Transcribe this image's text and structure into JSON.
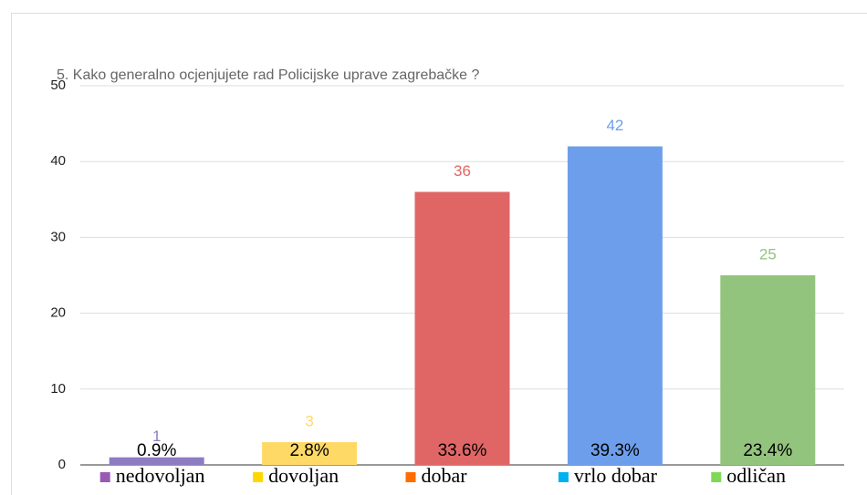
{
  "chart_data": {
    "type": "bar",
    "title": "5. Kako generalno ocjenjujete rad Policijske uprave zagrebačke ?",
    "categories": [
      "nedovoljan",
      "dovoljan",
      "dobar",
      "vrlo dobar",
      "odličan"
    ],
    "values": [
      1,
      3,
      36,
      42,
      25
    ],
    "colors": [
      "#8e7cc3",
      "#ffd966",
      "#e06666",
      "#6d9eeb",
      "#93c47d"
    ],
    "annotations": [
      "0.9%",
      "2.8%",
      "33.6%",
      "39.3%",
      "23.4%"
    ],
    "legend_colors": [
      "#9b59b6",
      "#ffd700",
      "#ff6d01",
      "#00b0f0",
      "#7ed957"
    ],
    "ylim": [
      0,
      50
    ],
    "yticks": [
      0,
      10,
      20,
      30,
      40,
      50
    ],
    "grid": true
  }
}
